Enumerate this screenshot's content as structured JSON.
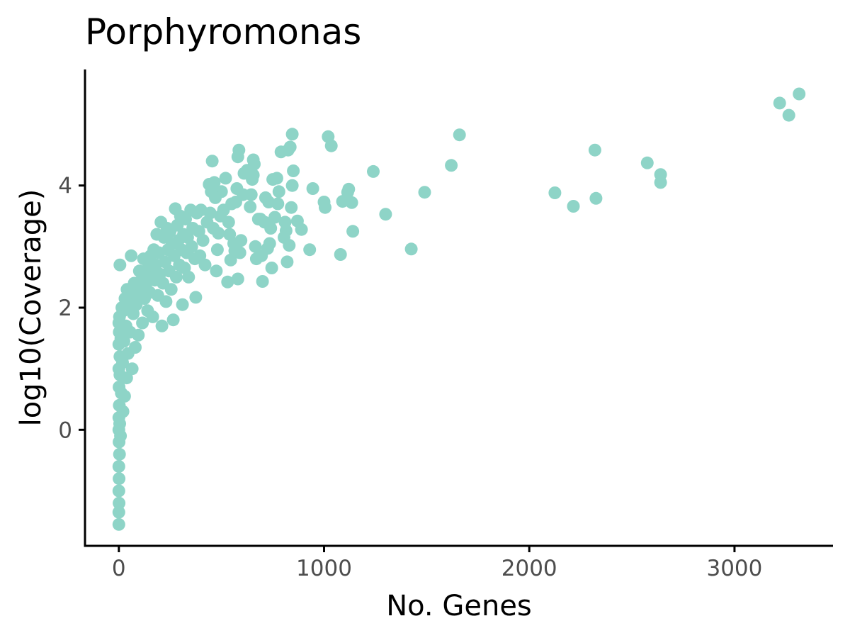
{
  "chart_data": {
    "type": "scatter",
    "title": "Porphyromonas",
    "xlabel": "No. Genes",
    "ylabel": "log10(Coverage)",
    "xlim": [
      -165,
      3480
    ],
    "ylim": [
      -1.9,
      5.9
    ],
    "xticks": [
      0,
      1000,
      2000,
      3000
    ],
    "xtick_labels": [
      "0",
      "1000",
      "2000",
      "3000"
    ],
    "yticks": [
      0,
      2,
      4
    ],
    "ytick_labels": [
      "0",
      "2",
      "4"
    ],
    "grid": false,
    "legend": "none",
    "point_color": "#8ed4c7",
    "series": [
      {
        "points": [
          [
            3315,
            5.5
          ],
          [
            3220,
            5.35
          ],
          [
            3265,
            5.15
          ],
          [
            2320,
            4.58
          ],
          [
            2575,
            4.37
          ],
          [
            2640,
            4.18
          ],
          [
            2640,
            4.05
          ],
          [
            2125,
            3.88
          ],
          [
            2215,
            3.66
          ],
          [
            2325,
            3.79
          ],
          [
            1660,
            4.83
          ],
          [
            1620,
            4.33
          ],
          [
            1490,
            3.89
          ],
          [
            1425,
            2.96
          ],
          [
            1300,
            3.53
          ],
          [
            1240,
            4.23
          ],
          [
            1140,
            3.25
          ],
          [
            1135,
            3.72
          ],
          [
            1120,
            3.94
          ],
          [
            1115,
            3.89
          ],
          [
            1090,
            3.74
          ],
          [
            1080,
            2.87
          ],
          [
            1035,
            4.65
          ],
          [
            1020,
            4.8
          ],
          [
            1005,
            3.64
          ],
          [
            1000,
            3.73
          ],
          [
            945,
            3.95
          ],
          [
            930,
            2.95
          ],
          [
            890,
            3.28
          ],
          [
            870,
            3.42
          ],
          [
            845,
            4.84
          ],
          [
            850,
            4.24
          ],
          [
            845,
            4.0
          ],
          [
            840,
            3.64
          ],
          [
            835,
            4.63
          ],
          [
            825,
            4.58
          ],
          [
            830,
            3.02
          ],
          [
            820,
            2.75
          ],
          [
            815,
            3.26
          ],
          [
            810,
            3.4
          ],
          [
            805,
            3.15
          ],
          [
            790,
            4.55
          ],
          [
            780,
            3.9
          ],
          [
            775,
            3.7
          ],
          [
            770,
            4.12
          ],
          [
            760,
            3.48
          ],
          [
            750,
            4.1
          ],
          [
            745,
            2.65
          ],
          [
            740,
            3.3
          ],
          [
            735,
            3.05
          ],
          [
            730,
            3.73
          ],
          [
            725,
            2.97
          ],
          [
            715,
            3.8
          ],
          [
            710,
            3.4
          ],
          [
            700,
            2.43
          ],
          [
            695,
            2.85
          ],
          [
            690,
            3.45
          ],
          [
            680,
            3.45
          ],
          [
            670,
            2.8
          ],
          [
            665,
            3.0
          ],
          [
            660,
            4.35
          ],
          [
            655,
            4.42
          ],
          [
            655,
            4.17
          ],
          [
            650,
            4.1
          ],
          [
            645,
            3.85
          ],
          [
            640,
            3.65
          ],
          [
            625,
            4.25
          ],
          [
            610,
            4.2
          ],
          [
            605,
            3.85
          ],
          [
            595,
            3.1
          ],
          [
            590,
            2.9
          ],
          [
            585,
            4.58
          ],
          [
            580,
            4.47
          ],
          [
            580,
            2.47
          ],
          [
            575,
            3.95
          ],
          [
            570,
            3.73
          ],
          [
            565,
            2.93
          ],
          [
            560,
            3.05
          ],
          [
            550,
            3.7
          ],
          [
            545,
            2.78
          ],
          [
            540,
            3.2
          ],
          [
            535,
            3.4
          ],
          [
            530,
            2.42
          ],
          [
            520,
            4.12
          ],
          [
            510,
            3.6
          ],
          [
            500,
            3.9
          ],
          [
            495,
            3.5
          ],
          [
            485,
            3.22
          ],
          [
            480,
            2.95
          ],
          [
            475,
            2.6
          ],
          [
            470,
            3.8
          ],
          [
            465,
            4.05
          ],
          [
            460,
            3.3
          ],
          [
            455,
            4.4
          ],
          [
            450,
            3.9
          ],
          [
            445,
            3.55
          ],
          [
            440,
            4.02
          ],
          [
            430,
            3.4
          ],
          [
            420,
            2.7
          ],
          [
            410,
            3.1
          ],
          [
            400,
            3.6
          ],
          [
            395,
            2.85
          ],
          [
            390,
            3.25
          ],
          [
            380,
            3.55
          ],
          [
            375,
            2.17
          ],
          [
            370,
            2.8
          ],
          [
            360,
            3.3
          ],
          [
            355,
            3.0
          ],
          [
            350,
            3.6
          ],
          [
            340,
            2.5
          ],
          [
            335,
            3.15
          ],
          [
            330,
            2.9
          ],
          [
            325,
            3.45
          ],
          [
            320,
            2.65
          ],
          [
            315,
            3.2
          ],
          [
            310,
            2.05
          ],
          [
            305,
            2.95
          ],
          [
            300,
            3.5
          ],
          [
            295,
            2.7
          ],
          [
            290,
            3.1
          ],
          [
            285,
            3.35
          ],
          [
            280,
            2.5
          ],
          [
            275,
            3.62
          ],
          [
            270,
            2.85
          ],
          [
            265,
            1.8
          ],
          [
            260,
            3.05
          ],
          [
            255,
            2.3
          ],
          [
            250,
            3.25
          ],
          [
            245,
            2.6
          ],
          [
            240,
            2.95
          ],
          [
            235,
            3.3
          ],
          [
            230,
            2.1
          ],
          [
            225,
            2.75
          ],
          [
            220,
            3.15
          ],
          [
            215,
            2.4
          ],
          [
            210,
            1.7
          ],
          [
            205,
            3.4
          ],
          [
            200,
            2.55
          ],
          [
            195,
            2.9
          ],
          [
            190,
            2.2
          ],
          [
            185,
            3.2
          ],
          [
            180,
            2.7
          ],
          [
            175,
            2.45
          ],
          [
            170,
            2.95
          ],
          [
            165,
            1.85
          ],
          [
            160,
            2.6
          ],
          [
            155,
            2.85
          ],
          [
            150,
            2.25
          ],
          [
            145,
            2.7
          ],
          [
            140,
            1.95
          ],
          [
            135,
            2.5
          ],
          [
            130,
            2.35
          ],
          [
            125,
            2.15
          ],
          [
            120,
            2.8
          ],
          [
            115,
            1.75
          ],
          [
            110,
            2.45
          ],
          [
            105,
            2.2
          ],
          [
            100,
            2.6
          ],
          [
            95,
            1.55
          ],
          [
            90,
            2.3
          ],
          [
            85,
            2.05
          ],
          [
            80,
            1.35
          ],
          [
            75,
            2.4
          ],
          [
            70,
            1.9
          ],
          [
            65,
            1.0
          ],
          [
            60,
            2.2
          ],
          [
            60,
            2.85
          ],
          [
            55,
            1.6
          ],
          [
            50,
            2.0
          ],
          [
            45,
            1.25
          ],
          [
            40,
            2.3
          ],
          [
            38,
            0.85
          ],
          [
            35,
            1.7
          ],
          [
            30,
            2.15
          ],
          [
            28,
            0.55
          ],
          [
            25,
            1.45
          ],
          [
            22,
            1.95
          ],
          [
            20,
            0.3
          ],
          [
            18,
            1.1
          ],
          [
            15,
            2.0
          ],
          [
            12,
            0.6
          ],
          [
            10,
            1.5
          ],
          [
            8,
            -0.1
          ],
          [
            5,
            2.7
          ],
          [
            5,
            1.2
          ],
          [
            5,
            0.9
          ],
          [
            4,
            0.1
          ],
          [
            3,
            1.85
          ],
          [
            3,
            -0.4
          ],
          [
            2,
            0.4
          ],
          [
            2,
            1.6
          ],
          [
            1,
            -0.8
          ],
          [
            1,
            -0.2
          ],
          [
            1,
            0.7
          ],
          [
            1,
            -1.2
          ],
          [
            0,
            -1.55
          ],
          [
            0,
            -1.35
          ],
          [
            0,
            -1.0
          ],
          [
            0,
            -0.6
          ],
          [
            0,
            0.0
          ],
          [
            0,
            1.0
          ],
          [
            0,
            1.4
          ],
          [
            0,
            1.75
          ],
          [
            0,
            0.2
          ]
        ]
      }
    ]
  }
}
